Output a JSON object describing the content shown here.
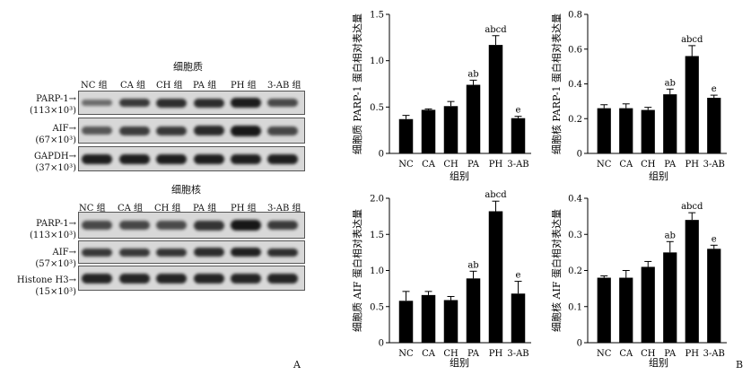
{
  "blots": {
    "cytoplasm": {
      "title": "细胞质",
      "lanes": [
        "NC 组",
        "CA 组",
        "CH 组",
        "PA 组",
        "PH 组",
        "3-AB 组"
      ],
      "rows": [
        {
          "label1": "PARP-1→",
          "label2": "(113×10³)",
          "intensity": [
            0.35,
            0.72,
            0.78,
            0.8,
            0.92,
            0.6
          ]
        },
        {
          "label1": "AIF→",
          "label2": "(67×10³)",
          "intensity": [
            0.5,
            0.68,
            0.72,
            0.82,
            0.95,
            0.62
          ]
        },
        {
          "label1": "GAPDH→",
          "label2": "(37×10³)",
          "intensity": [
            0.9,
            0.9,
            0.9,
            0.9,
            0.9,
            0.9
          ]
        }
      ]
    },
    "nucleus": {
      "title": "细胞核",
      "lanes": [
        "NC 组",
        "CA 组",
        "CH 组",
        "PA 组",
        "PH 组",
        "3-AB 组"
      ],
      "rows": [
        {
          "label1": "PARP-1→",
          "label2": "(113×10³)",
          "intensity": [
            0.6,
            0.62,
            0.58,
            0.74,
            0.96,
            0.7
          ]
        },
        {
          "label1": "AIF→",
          "label2": "(57×10³)",
          "intensity": [
            0.72,
            0.72,
            0.74,
            0.8,
            0.88,
            0.78
          ]
        },
        {
          "label1": "Histone H3→",
          "label2": "(15×10³)",
          "intensity": [
            0.85,
            0.85,
            0.85,
            0.85,
            0.85,
            0.85
          ]
        }
      ]
    },
    "panel_letter": "A"
  },
  "panel_letter_b": "B",
  "chart_data": [
    {
      "type": "bar",
      "ylabel": "细胞质 PARP-1 蛋白相对表达量",
      "xlabel": "组别",
      "categories": [
        "NC",
        "CA",
        "CH",
        "PA",
        "PH",
        "3-AB"
      ],
      "values": [
        0.37,
        0.47,
        0.51,
        0.74,
        1.17,
        0.38
      ],
      "errors": [
        0.04,
        0.01,
        0.05,
        0.05,
        0.1,
        0.02
      ],
      "annotations": [
        "",
        "",
        "",
        "ab",
        "abcd",
        "e"
      ],
      "ylim": [
        0,
        1.5
      ],
      "yticks": [
        0,
        0.5,
        1.0,
        1.5
      ],
      "ytick_labels": [
        "0",
        "0.5",
        "1.0",
        "1.5"
      ]
    },
    {
      "type": "bar",
      "ylabel": "细胞核 PARP-1 蛋白相对表达量",
      "xlabel": "组别",
      "categories": [
        "NC",
        "CA",
        "CH",
        "PA",
        "PH",
        "3-AB"
      ],
      "values": [
        0.26,
        0.26,
        0.25,
        0.34,
        0.56,
        0.32
      ],
      "errors": [
        0.02,
        0.025,
        0.015,
        0.03,
        0.06,
        0.015
      ],
      "annotations": [
        "",
        "",
        "",
        "ab",
        "abcd",
        "e"
      ],
      "ylim": [
        0,
        0.8
      ],
      "yticks": [
        0,
        0.2,
        0.4,
        0.6,
        0.8
      ],
      "ytick_labels": [
        "0",
        "0.2",
        "0.4",
        "0.6",
        "0.8"
      ]
    },
    {
      "type": "bar",
      "ylabel": "细胞质 AIF 蛋白相对表达量",
      "xlabel": "组别",
      "categories": [
        "NC",
        "CA",
        "CH",
        "PA",
        "PH",
        "3-AB"
      ],
      "values": [
        0.58,
        0.66,
        0.59,
        0.89,
        1.82,
        0.68
      ],
      "errors": [
        0.13,
        0.05,
        0.05,
        0.1,
        0.14,
        0.17
      ],
      "annotations": [
        "",
        "",
        "",
        "ab",
        "abcd",
        "e"
      ],
      "ylim": [
        0,
        2.0
      ],
      "yticks": [
        0,
        0.5,
        1.0,
        1.5,
        2.0
      ],
      "ytick_labels": [
        "0",
        "0.5",
        "1.0",
        "1.5",
        "2.0"
      ]
    },
    {
      "type": "bar",
      "ylabel": "细胞核 AIF 蛋白相对表达量",
      "xlabel": "组别",
      "categories": [
        "NC",
        "CA",
        "CH",
        "PA",
        "PH",
        "3-AB"
      ],
      "values": [
        0.18,
        0.18,
        0.21,
        0.25,
        0.34,
        0.26
      ],
      "errors": [
        0.005,
        0.02,
        0.015,
        0.03,
        0.02,
        0.01
      ],
      "annotations": [
        "",
        "",
        "",
        "ab",
        "abcd",
        "e"
      ],
      "ylim": [
        0,
        0.4
      ],
      "yticks": [
        0,
        0.1,
        0.2,
        0.3,
        0.4
      ],
      "ytick_labels": [
        "0",
        "0.1",
        "0.2",
        "0.3",
        "0.4"
      ]
    }
  ]
}
